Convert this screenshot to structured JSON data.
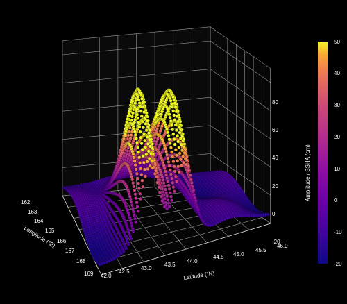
{
  "chart_data": {
    "type": "scatter",
    "subtype": "3d-surface-scatter",
    "xlabel": "Latitude (°N)",
    "ylabel": "Longitude (°E)",
    "zlabel": "Amplitude / SSHA (cm)",
    "x_ticks": [
      "42.0",
      "42.5",
      "43.0",
      "43.5",
      "44.0",
      "44.5",
      "45.0",
      "45.5",
      "46.0"
    ],
    "y_ticks": [
      "162",
      "163",
      "164",
      "165",
      "166",
      "167",
      "168",
      "169"
    ],
    "z_ticks": [
      "-20",
      "0",
      "20",
      "40",
      "60",
      "80"
    ],
    "colorbar_ticks": [
      "-20",
      "-10",
      "0",
      "10",
      "20",
      "30",
      "40",
      "50"
    ],
    "xlim": [
      42.0,
      46.0
    ],
    "ylim": [
      162.0,
      169.0
    ],
    "zlim": [
      -20,
      90
    ],
    "clim": [
      -20,
      50
    ],
    "colormap": "plasma",
    "grid": true,
    "background": "#000000",
    "surface_peaks": [
      {
        "lat": 43.2,
        "lon": 167.0,
        "z": 80
      },
      {
        "lat": 44.0,
        "lon": 167.0,
        "z": 82
      }
    ]
  }
}
